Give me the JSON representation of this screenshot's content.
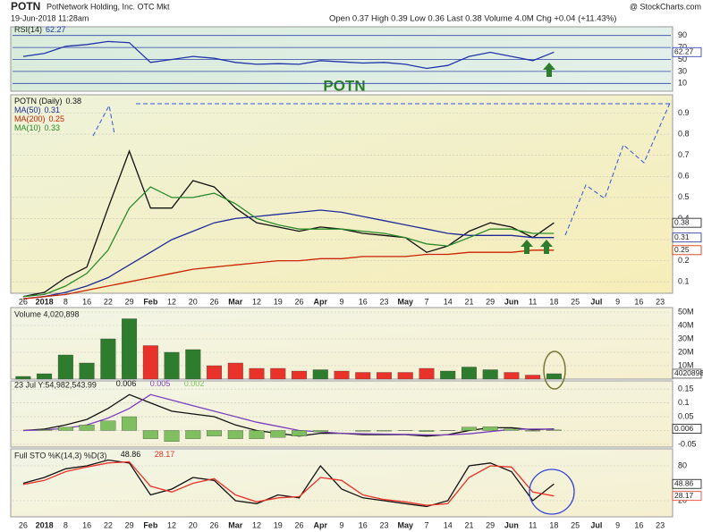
{
  "header": {
    "symbol": "POTN",
    "company": "PotNetwork Holding, Inc. OTC Mkt",
    "date": "19-Jun-2018 11:28am",
    "quote": "Open 0.37  High 0.39  Low 0.36  Last 0.38  Volume 4.0M  Chg +0.04 (+11.43%)",
    "source": "@ StockCharts.com"
  },
  "chart_data": [
    {
      "type": "line",
      "annotation": "POTN",
      "ylim": [
        0,
        100
      ],
      "yticks": [
        90,
        70,
        50,
        30,
        10
      ],
      "grid": true,
      "series": [
        {
          "name": "RSI(14)",
          "color": "#2233aa",
          "end_label": true,
          "values": [
            55,
            60,
            72,
            75,
            80,
            78,
            45,
            50,
            55,
            52,
            45,
            42,
            43,
            42,
            48,
            46,
            44,
            45,
            42,
            35,
            40,
            55,
            62,
            55,
            48,
            62.27,
            null,
            null,
            null,
            null,
            null
          ]
        }
      ]
    },
    {
      "type": "line",
      "ylim": [
        0.05,
        0.97
      ],
      "yticks": [
        0.1,
        0.2,
        0.3,
        0.4,
        0.5,
        0.6,
        0.7,
        0.8,
        0.9
      ],
      "grid": true,
      "categories": [
        "26",
        "2018",
        "8",
        "16",
        "22",
        "29",
        "Feb",
        "12",
        "20",
        "26",
        "Mar",
        "12",
        "19",
        "26",
        "Apr",
        "9",
        "16",
        "23",
        "May",
        "7",
        "14",
        "21",
        "29",
        "Jun",
        "11",
        "18",
        "25",
        "Jul",
        "9",
        "16",
        "23"
      ],
      "series": [
        {
          "name": "POTN (Daily)",
          "color": "#111111",
          "end_label": true,
          "values": [
            0.03,
            0.05,
            0.12,
            0.17,
            0.45,
            0.72,
            0.45,
            0.45,
            0.58,
            0.55,
            0.45,
            0.38,
            0.36,
            0.34,
            0.36,
            0.35,
            0.33,
            0.32,
            0.31,
            0.24,
            0.27,
            0.34,
            0.38,
            0.36,
            0.31,
            0.38,
            null,
            null,
            null,
            null,
            null
          ]
        },
        {
          "name": "MA(50)",
          "color": "#1f2a9a",
          "end_label": true,
          "values": [
            0.02,
            0.03,
            0.05,
            0.08,
            0.12,
            0.18,
            0.24,
            0.3,
            0.34,
            0.38,
            0.4,
            0.41,
            0.42,
            0.43,
            0.44,
            0.43,
            0.41,
            0.39,
            0.37,
            0.35,
            0.33,
            0.32,
            0.32,
            0.32,
            0.31,
            0.31,
            null,
            null,
            null,
            null,
            null
          ]
        },
        {
          "name": "MA(200)",
          "color": "#cc2200",
          "end_label": true,
          "values": [
            0.02,
            0.03,
            0.04,
            0.06,
            0.08,
            0.1,
            0.12,
            0.14,
            0.16,
            0.17,
            0.18,
            0.19,
            0.2,
            0.2,
            0.21,
            0.21,
            0.22,
            0.22,
            0.22,
            0.23,
            0.23,
            0.24,
            0.24,
            0.24,
            0.25,
            0.25,
            null,
            null,
            null,
            null,
            null
          ]
        },
        {
          "name": "MA(10)",
          "color": "#2a8a2a",
          "end_label": false,
          "values": [
            0.03,
            0.04,
            0.08,
            0.14,
            0.25,
            0.45,
            0.55,
            0.5,
            0.5,
            0.52,
            0.47,
            0.4,
            0.37,
            0.35,
            0.35,
            0.35,
            0.34,
            0.33,
            0.31,
            0.28,
            0.27,
            0.31,
            0.35,
            0.35,
            0.33,
            0.33,
            null,
            null,
            null,
            null,
            null
          ]
        }
      ]
    },
    {
      "type": "bar",
      "title": "Volume 4,020,898",
      "ylim": [
        0,
        50000000
      ],
      "yticks": [
        {
          "value": 50000000,
          "label": "50M"
        },
        {
          "value": 40000000,
          "label": "40M"
        },
        {
          "value": 30000000,
          "label": "30M"
        },
        {
          "value": 20000000,
          "label": "20M"
        },
        {
          "value": 10000000,
          "label": "10M"
        }
      ],
      "grid": true,
      "series": [
        {
          "up_color": "#2e7d2e",
          "down_color": "#e8322a",
          "end_label": true,
          "values": [
            2000000,
            4000000,
            18000000,
            12000000,
            30000000,
            45000000,
            25000000,
            20000000,
            22000000,
            10000000,
            12000000,
            8000000,
            8000000,
            6000000,
            7000000,
            6000000,
            5000000,
            5000000,
            5000000,
            8000000,
            6000000,
            9000000,
            7000000,
            5000000,
            3000000,
            4020898,
            null,
            null,
            null,
            null,
            null
          ]
        }
      ]
    },
    {
      "type": "line",
      "title": "23 Jul Y:54,982,543.99",
      "ylim": [
        -0.06,
        0.17
      ],
      "yticks": [
        0.15,
        0.1,
        0.05,
        0,
        -0.05
      ],
      "grid": true,
      "series": [
        {
          "color": "#111111",
          "end_label": true,
          "values": [
            0,
            0.005,
            0.02,
            0.04,
            0.08,
            0.13,
            0.1,
            0.07,
            0.06,
            0.05,
            0.02,
            0,
            -0.01,
            -0.02,
            -0.01,
            -0.01,
            -0.015,
            -0.015,
            -0.015,
            -0.02,
            -0.015,
            0,
            0.01,
            0.01,
            0.003,
            0.006,
            null,
            null,
            null,
            null,
            null
          ]
        },
        {
          "color": "#7b3fc0",
          "end_label": false,
          "values": [
            0,
            0.002,
            0.008,
            0.02,
            0.045,
            0.08,
            0.13,
            0.11,
            0.09,
            0.07,
            0.05,
            0.03,
            0.015,
            0,
            -0.005,
            -0.01,
            -0.012,
            -0.013,
            -0.014,
            -0.016,
            -0.016,
            -0.012,
            -0.004,
            0.004,
            0.005,
            0.005,
            null,
            null,
            null,
            null,
            null
          ]
        },
        {
          "type": "bar",
          "color": "#7fbf5f",
          "end_label": false,
          "values": [
            0,
            0.003,
            0.012,
            0.02,
            0.035,
            0.05,
            -0.03,
            -0.04,
            -0.03,
            -0.02,
            -0.03,
            -0.03,
            -0.025,
            -0.02,
            -0.005,
            0,
            -0.003,
            -0.002,
            -0.001,
            -0.004,
            0.001,
            0.012,
            0.014,
            0.006,
            -0.002,
            0.002,
            null,
            null,
            null,
            null,
            null
          ]
        }
      ]
    },
    {
      "type": "line",
      "title": "Full STO %K(14,3) %D(3)",
      "ylim": [
        0,
        100
      ],
      "yticks": [
        80,
        20
      ],
      "grid": true,
      "series": [
        {
          "color": "#111111",
          "end_label": true,
          "values": [
            50,
            60,
            75,
            80,
            90,
            85,
            30,
            40,
            60,
            55,
            20,
            15,
            30,
            25,
            80,
            40,
            25,
            20,
            15,
            10,
            20,
            80,
            85,
            70,
            20,
            48.86,
            null,
            null,
            null,
            null,
            null
          ]
        },
        {
          "color": "#e8322a",
          "end_label": true,
          "values": [
            48,
            55,
            70,
            78,
            85,
            87,
            45,
            35,
            50,
            58,
            30,
            18,
            25,
            27,
            60,
            55,
            30,
            22,
            18,
            12,
            15,
            60,
            80,
            78,
            35,
            28.17,
            null,
            null,
            null,
            null,
            null
          ]
        }
      ]
    }
  ]
}
